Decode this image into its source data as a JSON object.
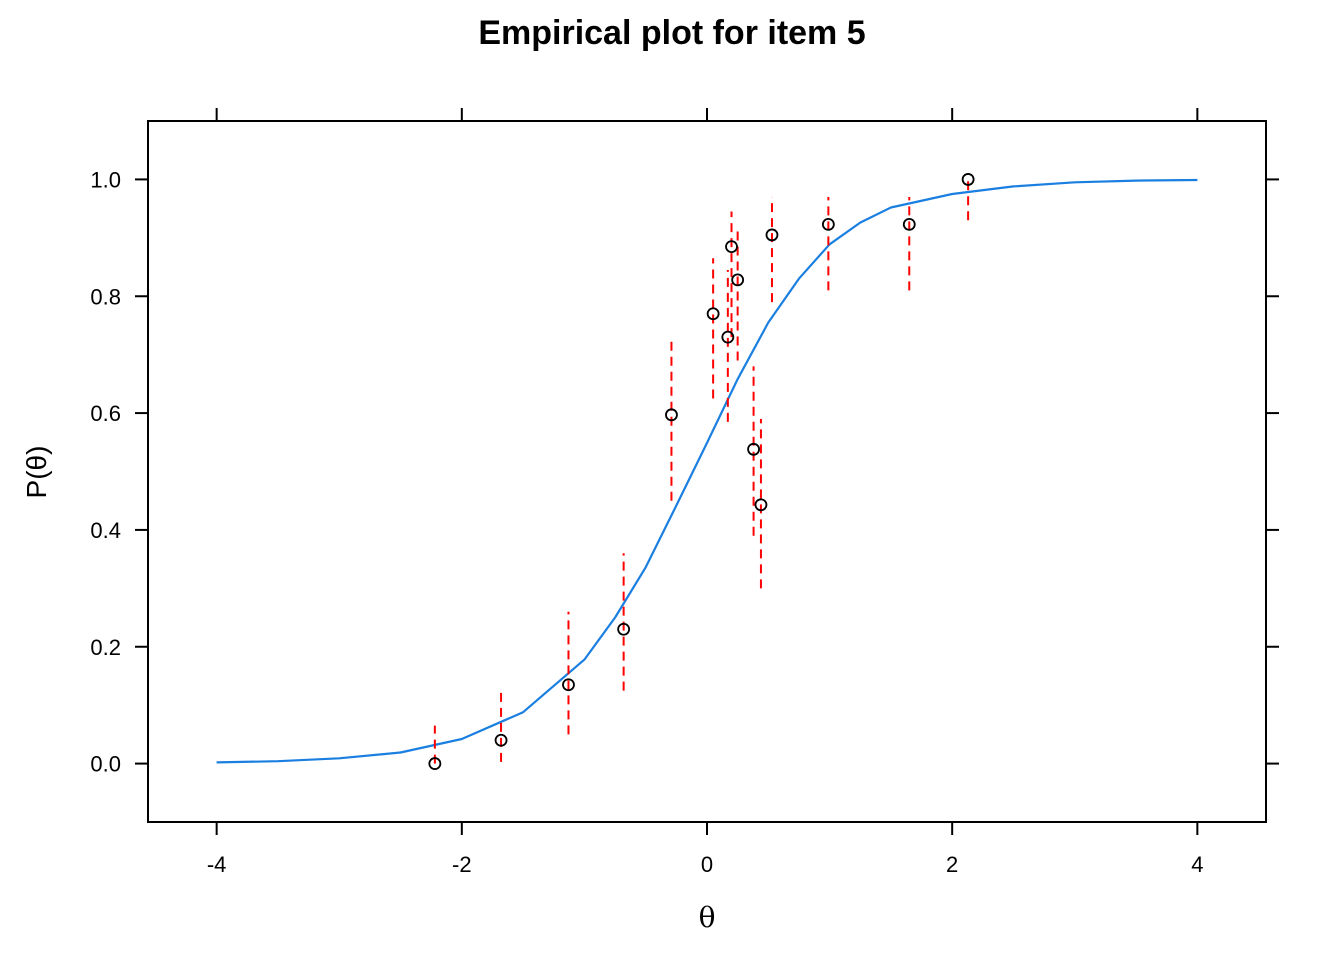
{
  "chart_data": {
    "type": "scatter",
    "title": "Empirical plot for item 5",
    "xlabel": "θ",
    "ylabel": "P(θ)",
    "xlim": [
      -4.56,
      4.56
    ],
    "ylim": [
      -0.1,
      1.1
    ],
    "x_ticks": [
      -4,
      -2,
      0,
      2,
      4
    ],
    "x_tick_labels": [
      "-4",
      "-2",
      "0",
      "2",
      "4"
    ],
    "y_ticks": [
      0.0,
      0.2,
      0.4,
      0.6,
      0.8,
      1.0
    ],
    "y_tick_labels": [
      "0.0",
      "0.2",
      "0.4",
      "0.6",
      "0.8",
      "1.0"
    ],
    "grid": false,
    "series": [
      {
        "type": "line",
        "color": "#1a7fe0",
        "points": [
          [
            -4.0,
            0.002
          ],
          [
            -3.5,
            0.004
          ],
          [
            -3.0,
            0.009
          ],
          [
            -2.5,
            0.019
          ],
          [
            -2.0,
            0.042
          ],
          [
            -1.5,
            0.088
          ],
          [
            -1.0,
            0.178
          ],
          [
            -0.75,
            0.25
          ],
          [
            -0.5,
            0.336
          ],
          [
            -0.25,
            0.442
          ],
          [
            0.0,
            0.549
          ],
          [
            0.25,
            0.658
          ],
          [
            0.5,
            0.755
          ],
          [
            0.75,
            0.83
          ],
          [
            1.0,
            0.889
          ],
          [
            1.25,
            0.926
          ],
          [
            1.5,
            0.952
          ],
          [
            2.0,
            0.975
          ],
          [
            2.5,
            0.988
          ],
          [
            3.0,
            0.995
          ],
          [
            3.5,
            0.998
          ],
          [
            4.0,
            0.999
          ]
        ]
      },
      {
        "type": "scatter",
        "color": "#000000",
        "error_bar_color": "#ff0000",
        "points": [
          {
            "x": -2.22,
            "y": 0.0,
            "lo": 0.0,
            "hi": 0.065
          },
          {
            "x": -1.68,
            "y": 0.04,
            "lo": 0.003,
            "hi": 0.13
          },
          {
            "x": -1.13,
            "y": 0.135,
            "lo": 0.05,
            "hi": 0.26
          },
          {
            "x": -0.68,
            "y": 0.23,
            "lo": 0.125,
            "hi": 0.36
          },
          {
            "x": -0.29,
            "y": 0.597,
            "lo": 0.45,
            "hi": 0.73
          },
          {
            "x": 0.05,
            "y": 0.77,
            "lo": 0.625,
            "hi": 0.865
          },
          {
            "x": 0.17,
            "y": 0.73,
            "lo": 0.585,
            "hi": 0.845
          },
          {
            "x": 0.2,
            "y": 0.885,
            "lo": 0.73,
            "hi": 0.945
          },
          {
            "x": 0.25,
            "y": 0.828,
            "lo": 0.69,
            "hi": 0.915
          },
          {
            "x": 0.38,
            "y": 0.538,
            "lo": 0.39,
            "hi": 0.68
          },
          {
            "x": 0.44,
            "y": 0.443,
            "lo": 0.3,
            "hi": 0.59
          },
          {
            "x": 0.53,
            "y": 0.905,
            "lo": 0.79,
            "hi": 0.97
          },
          {
            "x": 0.99,
            "y": 0.923,
            "lo": 0.81,
            "hi": 0.97
          },
          {
            "x": 1.65,
            "y": 0.923,
            "lo": 0.81,
            "hi": 0.97
          },
          {
            "x": 2.13,
            "y": 1.0,
            "lo": 0.93,
            "hi": 1.0
          }
        ]
      }
    ]
  }
}
